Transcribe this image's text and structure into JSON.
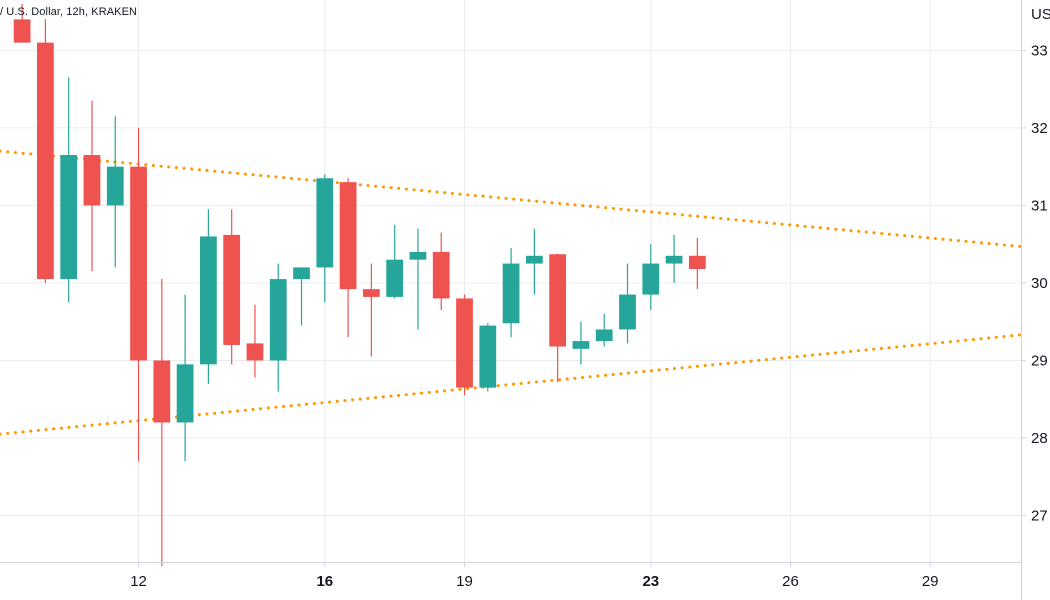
{
  "header": {
    "symbol_line": "/ U.S. Dollar, 12h, KRAKEN",
    "currency_label": "USD"
  },
  "colors": {
    "up": "#26a69a",
    "down": "#ef5350",
    "trendline": "#ff9800",
    "grid": "#e9ecef",
    "axis": "#d1d4dc",
    "text": "#131722"
  },
  "chart_data": {
    "type": "candlestick",
    "interval": "12h",
    "exchange": "KRAKEN",
    "quote": "U.S. Dollar",
    "x_ticks": [
      {
        "label": "12",
        "bar": 5.5,
        "bold": false
      },
      {
        "label": "16",
        "bar": 13.5,
        "bold": true
      },
      {
        "label": "19",
        "bar": 19.5,
        "bold": false
      },
      {
        "label": "23",
        "bar": 27.5,
        "bold": true
      },
      {
        "label": "26",
        "bar": 33.5,
        "bold": false
      },
      {
        "label": "29",
        "bar": 39.5,
        "bold": false
      }
    ],
    "y_ticks": [
      {
        "label": "27",
        "value": 27
      },
      {
        "label": "28",
        "value": 28
      },
      {
        "label": "29",
        "value": 29
      },
      {
        "label": "30",
        "value": 30
      },
      {
        "label": "31",
        "value": 31
      },
      {
        "label": "32",
        "value": 32
      },
      {
        "label": "33",
        "value": 33
      }
    ],
    "ylim": [
      26.4,
      33.65
    ],
    "xlim": [
      -0.45,
      43.4
    ],
    "candles": [
      {
        "o": 33.4,
        "h": 33.6,
        "l": 33.15,
        "c": 33.1
      },
      {
        "o": 33.1,
        "h": 33.4,
        "l": 30.0,
        "c": 30.05
      },
      {
        "o": 30.05,
        "h": 32.65,
        "l": 29.75,
        "c": 31.65
      },
      {
        "o": 31.65,
        "h": 32.35,
        "l": 30.15,
        "c": 31.0
      },
      {
        "o": 31.0,
        "h": 32.15,
        "l": 30.2,
        "c": 31.5
      },
      {
        "o": 31.5,
        "h": 32.0,
        "l": 27.7,
        "c": 29.0
      },
      {
        "o": 29.0,
        "h": 30.05,
        "l": 26.35,
        "c": 28.2
      },
      {
        "o": 28.2,
        "h": 29.85,
        "l": 27.7,
        "c": 28.95
      },
      {
        "o": 28.95,
        "h": 30.95,
        "l": 28.7,
        "c": 30.6
      },
      {
        "o": 30.62,
        "h": 30.95,
        "l": 28.95,
        "c": 29.2
      },
      {
        "o": 29.22,
        "h": 29.72,
        "l": 28.78,
        "c": 29.0
      },
      {
        "o": 29.0,
        "h": 30.25,
        "l": 28.6,
        "c": 30.05
      },
      {
        "o": 30.05,
        "h": 30.2,
        "l": 29.45,
        "c": 30.2
      },
      {
        "o": 30.2,
        "h": 31.4,
        "l": 29.75,
        "c": 31.35
      },
      {
        "o": 31.3,
        "h": 31.35,
        "l": 29.3,
        "c": 29.92
      },
      {
        "o": 29.92,
        "h": 30.25,
        "l": 29.05,
        "c": 29.82
      },
      {
        "o": 29.82,
        "h": 30.75,
        "l": 29.8,
        "c": 30.3
      },
      {
        "o": 30.3,
        "h": 30.7,
        "l": 29.4,
        "c": 30.4
      },
      {
        "o": 30.4,
        "h": 30.65,
        "l": 29.65,
        "c": 29.8
      },
      {
        "o": 29.8,
        "h": 29.85,
        "l": 28.55,
        "c": 28.65
      },
      {
        "o": 28.65,
        "h": 29.48,
        "l": 28.6,
        "c": 29.45
      },
      {
        "o": 29.48,
        "h": 30.45,
        "l": 29.3,
        "c": 30.25
      },
      {
        "o": 30.25,
        "h": 30.7,
        "l": 29.85,
        "c": 30.35
      },
      {
        "o": 30.37,
        "h": 30.38,
        "l": 28.72,
        "c": 29.18
      },
      {
        "o": 29.15,
        "h": 29.5,
        "l": 28.95,
        "c": 29.25
      },
      {
        "o": 29.25,
        "h": 29.6,
        "l": 29.18,
        "c": 29.4
      },
      {
        "o": 29.4,
        "h": 30.25,
        "l": 29.22,
        "c": 29.85
      },
      {
        "o": 29.85,
        "h": 30.5,
        "l": 29.65,
        "c": 30.25
      },
      {
        "o": 30.25,
        "h": 30.62,
        "l": 30.0,
        "c": 30.35
      },
      {
        "o": 30.35,
        "h": 30.58,
        "l": 29.92,
        "c": 30.18
      }
    ],
    "trendlines": [
      {
        "name": "upper",
        "x1": -0.45,
        "y1": 31.7,
        "x2": 43.4,
        "y2": 30.47
      },
      {
        "name": "lower",
        "x1": -0.45,
        "y1": 28.05,
        "x2": 43.4,
        "y2": 29.33
      }
    ]
  }
}
